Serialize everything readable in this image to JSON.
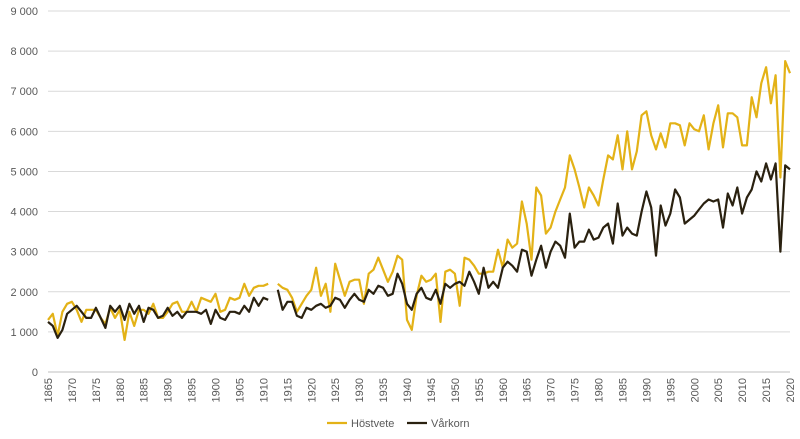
{
  "chart_data": {
    "type": "line",
    "title": "",
    "xlabel": "",
    "ylabel": "",
    "ylim": [
      0,
      9000
    ],
    "xlim": [
      1865,
      2020
    ],
    "grid": true,
    "legend_position": "bottom",
    "y_ticks": [
      "0",
      "1 000",
      "2 000",
      "3 000",
      "4 000",
      "5 000",
      "6 000",
      "7 000",
      "8 000",
      "9 000"
    ],
    "y_tick_values": [
      0,
      1000,
      2000,
      3000,
      4000,
      5000,
      6000,
      7000,
      8000,
      9000
    ],
    "x_ticks": [
      1865,
      1870,
      1875,
      1880,
      1885,
      1890,
      1895,
      1900,
      1905,
      1910,
      1915,
      1920,
      1925,
      1930,
      1935,
      1940,
      1945,
      1950,
      1955,
      1960,
      1965,
      1970,
      1975,
      1980,
      1985,
      1990,
      1995,
      2000,
      2005,
      2010,
      2015,
      2020
    ],
    "x_start": 1865,
    "series": [
      {
        "name": "Höstvete",
        "color": "#E3B217",
        "values": [
          1300,
          1450,
          900,
          1500,
          1700,
          1750,
          1550,
          1250,
          1550,
          1550,
          1550,
          1350,
          1200,
          1600,
          1350,
          1550,
          800,
          1500,
          1150,
          1550,
          1550,
          1450,
          1700,
          1350,
          1350,
          1500,
          1700,
          1750,
          1500,
          1500,
          1750,
          1500,
          1850,
          1800,
          1750,
          1950,
          1500,
          1550,
          1850,
          1800,
          1850,
          2200,
          1900,
          2100,
          2150,
          2150,
          2200,
          null,
          2200,
          2100,
          2050,
          1850,
          1500,
          1700,
          1900,
          2050,
          2600,
          1900,
          2200,
          1500,
          2700,
          2300,
          1900,
          2250,
          2300,
          2300,
          1700,
          2450,
          2550,
          2850,
          2550,
          2250,
          2500,
          2900,
          2800,
          1300,
          1050,
          1900,
          2400,
          2250,
          2300,
          2450,
          1250,
          2500,
          2550,
          2450,
          1650,
          2850,
          2800,
          2650,
          2450,
          2450,
          2500,
          2500,
          3050,
          2600,
          3300,
          3100,
          3200,
          4250,
          3700,
          2800,
          4600,
          4400,
          3450,
          3600,
          4000,
          4300,
          4600,
          5400,
          5050,
          4600,
          4100,
          4600,
          4400,
          4150,
          4800,
          5400,
          5300,
          5900,
          5050,
          6000,
          5050,
          5500,
          6400,
          6500,
          5900,
          5550,
          5950,
          5600,
          6200,
          6200,
          6150,
          5650,
          6200,
          6050,
          6000,
          6400,
          5550,
          6200,
          6650,
          5600,
          6450,
          6450,
          6350,
          5650,
          5650,
          6850,
          6350,
          7200,
          7600,
          6700,
          7400,
          4850,
          7750,
          7450
        ]
      },
      {
        "name": "Vårkorn",
        "color": "#2A2110",
        "values": [
          1250,
          1150,
          850,
          1050,
          1450,
          1550,
          1650,
          1500,
          1350,
          1350,
          1600,
          1350,
          1100,
          1650,
          1500,
          1650,
          1300,
          1700,
          1450,
          1650,
          1250,
          1600,
          1550,
          1350,
          1400,
          1600,
          1400,
          1500,
          1350,
          1500,
          1500,
          1500,
          1450,
          1550,
          1200,
          1550,
          1350,
          1300,
          1500,
          1500,
          1450,
          1650,
          1500,
          1850,
          1650,
          1850,
          1800,
          null,
          2050,
          1550,
          1750,
          1750,
          1400,
          1350,
          1600,
          1550,
          1650,
          1700,
          1600,
          1650,
          1850,
          1800,
          1600,
          1800,
          1950,
          1800,
          1750,
          2050,
          1950,
          2150,
          2100,
          1900,
          1950,
          2450,
          2200,
          1700,
          1550,
          1950,
          2100,
          1850,
          1800,
          2050,
          1700,
          2200,
          2100,
          2200,
          2250,
          2150,
          2500,
          2250,
          1950,
          2600,
          2100,
          2250,
          2100,
          2600,
          2750,
          2650,
          2500,
          3050,
          3000,
          2400,
          2800,
          3150,
          2600,
          3000,
          3250,
          3150,
          2850,
          3950,
          3100,
          3250,
          3250,
          3550,
          3300,
          3350,
          3600,
          3700,
          3200,
          4200,
          3400,
          3600,
          3450,
          3400,
          4000,
          4500,
          4100,
          2900,
          4150,
          3650,
          3950,
          4550,
          4350,
          3700,
          3800,
          3900,
          4050,
          4200,
          4300,
          4250,
          4300,
          3600,
          4450,
          4150,
          4600,
          3950,
          4350,
          4550,
          5000,
          4750,
          5200,
          4800,
          5200,
          3000,
          5150,
          5050
        ]
      }
    ]
  }
}
